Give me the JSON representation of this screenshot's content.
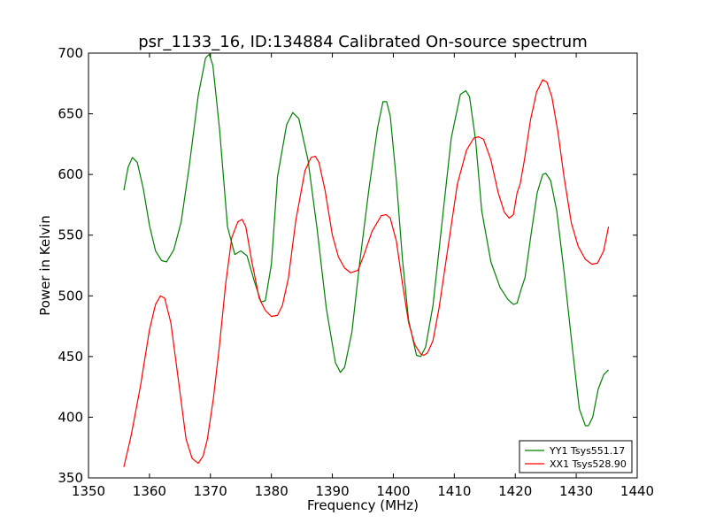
{
  "chart_data": {
    "type": "line",
    "title": "psr_1133_16, ID:134884 Calibrated On-source spectrum",
    "xlabel": "Frequency (MHz)",
    "ylabel": "Power in Kelvin",
    "xlim": [
      1350,
      1440
    ],
    "ylim": [
      350,
      700
    ],
    "xticks": [
      "1350",
      "1360",
      "1370",
      "1380",
      "1390",
      "1400",
      "1410",
      "1420",
      "1430",
      "1440"
    ],
    "yticks": [
      "350",
      "400",
      "450",
      "500",
      "550",
      "600",
      "650",
      "700"
    ],
    "grid": false,
    "legend_position": "lower-right",
    "series": [
      {
        "name": "YY1 Tsys551.17",
        "color": "#008000",
        "x": [
          1355.8,
          1356.5,
          1357.2,
          1358.0,
          1359.0,
          1360.0,
          1361.0,
          1362.0,
          1362.8,
          1364.0,
          1365.2,
          1366.5,
          1368.0,
          1369.2,
          1369.8,
          1370.4,
          1371.5,
          1372.8,
          1374.0,
          1375.0,
          1376.0,
          1377.2,
          1378.3,
          1379.0,
          1380.0,
          1381.0,
          1382.5,
          1383.5,
          1384.5,
          1386.0,
          1387.5,
          1389.0,
          1390.5,
          1391.3,
          1392.0,
          1393.2,
          1394.5,
          1396.0,
          1397.4,
          1398.3,
          1398.9,
          1399.5,
          1400.5,
          1401.5,
          1402.5,
          1403.8,
          1404.5,
          1405.3,
          1406.5,
          1408.0,
          1409.5,
          1411.0,
          1411.9,
          1412.5,
          1413.5,
          1414.5,
          1416.0,
          1417.5,
          1418.8,
          1419.7,
          1420.3,
          1421.0,
          1421.6,
          1422.6,
          1423.6,
          1424.5,
          1425.0,
          1425.8,
          1426.8,
          1428.0,
          1429.3,
          1430.5,
          1431.5,
          1432.0,
          1432.7,
          1433.6,
          1434.5,
          1435.3
        ],
        "values": [
          587,
          606,
          614,
          610,
          588,
          558,
          537,
          529,
          528,
          538,
          561,
          606,
          665,
          696,
          699,
          690,
          637,
          557,
          534,
          537,
          533,
          512,
          495,
          496,
          526,
          598,
          641,
          651,
          646,
          612,
          555,
          490,
          445,
          437,
          441,
          470,
          528,
          588,
          638,
          660,
          660,
          648,
          595,
          530,
          480,
          451,
          450,
          458,
          492,
          561,
          630,
          666,
          669,
          664,
          628,
          570,
          528,
          507,
          497,
          493,
          494,
          506,
          515,
          551,
          585,
          600,
          601,
          595,
          570,
          520,
          460,
          407,
          393,
          393,
          400,
          423,
          435,
          439
        ]
      },
      {
        "name": "XX1 Tsys528.90",
        "color": "#ff0000",
        "x": [
          1355.8,
          1357.0,
          1358.5,
          1360.0,
          1361.0,
          1361.8,
          1362.5,
          1363.5,
          1364.5,
          1366.0,
          1367.0,
          1368.0,
          1368.8,
          1369.5,
          1370.5,
          1371.5,
          1372.5,
          1373.5,
          1374.5,
          1375.2,
          1375.8,
          1376.8,
          1378.0,
          1379.0,
          1380.0,
          1381.0,
          1381.8,
          1382.8,
          1384.0,
          1385.5,
          1386.5,
          1387.2,
          1387.8,
          1388.8,
          1390.0,
          1391.0,
          1392.0,
          1393.0,
          1394.2,
          1395.2,
          1396.5,
          1398.0,
          1398.8,
          1399.5,
          1400.5,
          1401.5,
          1402.5,
          1403.5,
          1404.5,
          1405.0,
          1405.6,
          1406.5,
          1407.5,
          1409.0,
          1410.5,
          1412.0,
          1413.2,
          1414.0,
          1414.8,
          1416.0,
          1417.2,
          1418.2,
          1419.0,
          1419.7,
          1420.3,
          1420.8,
          1421.5,
          1422.5,
          1423.5,
          1424.5,
          1425.2,
          1426.0,
          1427.0,
          1428.0,
          1429.2,
          1430.3,
          1431.5,
          1432.6,
          1433.5,
          1434.5,
          1435.3
        ],
        "values": [
          359,
          385,
          425,
          472,
          493,
          500,
          498,
          478,
          440,
          382,
          366,
          362,
          368,
          382,
          416,
          460,
          510,
          548,
          561,
          563,
          557,
          528,
          498,
          488,
          483,
          484,
          492,
          515,
          562,
          603,
          614,
          615,
          610,
          587,
          550,
          532,
          523,
          519,
          521,
          534,
          553,
          566,
          567,
          564,
          545,
          510,
          478,
          460,
          452,
          451,
          453,
          463,
          490,
          541,
          592,
          620,
          630,
          631,
          629,
          612,
          585,
          569,
          564,
          567,
          585,
          592,
          612,
          645,
          668,
          678,
          676,
          664,
          635,
          598,
          560,
          541,
          530,
          526,
          527,
          537,
          557
        ]
      }
    ]
  }
}
